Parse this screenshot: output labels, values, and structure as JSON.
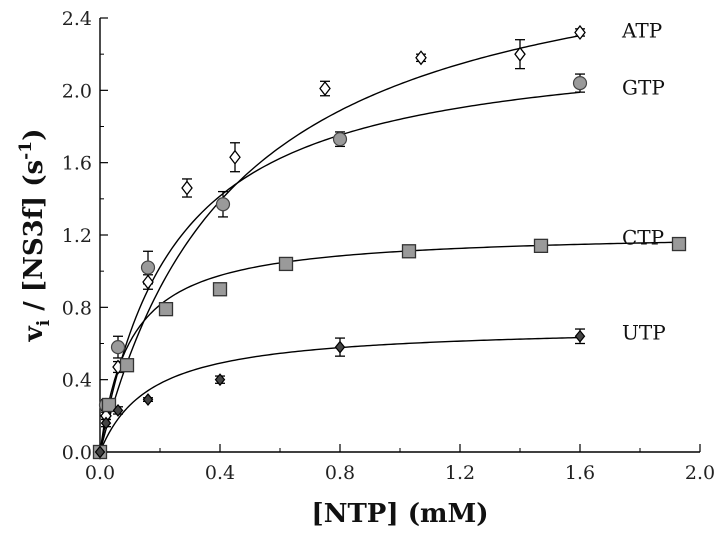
{
  "chart_data": {
    "type": "scatter",
    "xlabel": "[NTP] (mM)",
    "ylabel_main": "v",
    "ylabel_sub": "i",
    "ylabel_rest": " / [NS3f] (s",
    "ylabel_sup": "-1",
    "ylabel_end": ")",
    "xlim": [
      0.0,
      2.0
    ],
    "ylim": [
      0.0,
      2.4
    ],
    "xticks": [
      0.0,
      0.4,
      0.8,
      1.2,
      1.6,
      2.0
    ],
    "xtick_labels": [
      "0.0",
      "0.4",
      "0.8",
      "1.2",
      "1.6",
      "2.0"
    ],
    "yticks": [
      0.0,
      0.4,
      0.8,
      1.2,
      1.6,
      2.0,
      2.4
    ],
    "ytick_labels": [
      "0.0",
      "0.4",
      "0.8",
      "1.2",
      "1.6",
      "2.0",
      "2.4"
    ],
    "series": [
      {
        "name": "ATP",
        "marker": "diamond-open",
        "fill": "#ffffff",
        "points": [
          {
            "x": 0.0,
            "y": 0.0,
            "err": 0.0
          },
          {
            "x": 0.02,
            "y": 0.2,
            "err": 0.02
          },
          {
            "x": 0.06,
            "y": 0.47,
            "err": 0.03
          },
          {
            "x": 0.16,
            "y": 0.94,
            "err": 0.04
          },
          {
            "x": 0.29,
            "y": 1.46,
            "err": 0.05
          },
          {
            "x": 0.45,
            "y": 1.63,
            "err": 0.08
          },
          {
            "x": 0.75,
            "y": 2.01,
            "err": 0.04
          },
          {
            "x": 1.07,
            "y": 2.18,
            "err": 0.02
          },
          {
            "x": 1.4,
            "y": 2.2,
            "err": 0.08
          },
          {
            "x": 1.6,
            "y": 2.32,
            "err": 0.02
          }
        ],
        "fit": {
          "vmax": 2.95,
          "km": 0.45
        }
      },
      {
        "name": "GTP",
        "marker": "circle",
        "fill": "#9a9a9a",
        "points": [
          {
            "x": 0.0,
            "y": 0.0,
            "err": 0.0
          },
          {
            "x": 0.02,
            "y": 0.26,
            "err": 0.03
          },
          {
            "x": 0.06,
            "y": 0.58,
            "err": 0.06
          },
          {
            "x": 0.16,
            "y": 1.02,
            "err": 0.09
          },
          {
            "x": 0.41,
            "y": 1.37,
            "err": 0.07
          },
          {
            "x": 0.8,
            "y": 1.73,
            "err": 0.04
          },
          {
            "x": 1.6,
            "y": 2.04,
            "err": 0.05
          }
        ],
        "fit": {
          "vmax": 2.3,
          "km": 0.25
        }
      },
      {
        "name": "CTP",
        "marker": "square",
        "fill": "#9a9a9a",
        "points": [
          {
            "x": 0.0,
            "y": 0.0,
            "err": 0.0
          },
          {
            "x": 0.03,
            "y": 0.26,
            "err": 0.02
          },
          {
            "x": 0.09,
            "y": 0.48,
            "err": 0.03
          },
          {
            "x": 0.22,
            "y": 0.79,
            "err": 0.02
          },
          {
            "x": 0.4,
            "y": 0.9,
            "err": 0.02
          },
          {
            "x": 0.62,
            "y": 1.04,
            "err": 0.02
          },
          {
            "x": 1.03,
            "y": 1.11,
            "err": 0.02
          },
          {
            "x": 1.47,
            "y": 1.14,
            "err": 0.02
          },
          {
            "x": 1.93,
            "y": 1.15,
            "err": 0.02
          }
        ],
        "fit": {
          "vmax": 1.22,
          "km": 0.1
        }
      },
      {
        "name": "UTP",
        "marker": "diamond-mixed",
        "fill": "#444444",
        "points": [
          {
            "x": 0.0,
            "y": 0.0,
            "err": 0.0
          },
          {
            "x": 0.02,
            "y": 0.16,
            "err": 0.02
          },
          {
            "x": 0.06,
            "y": 0.23,
            "err": 0.02
          },
          {
            "x": 0.16,
            "y": 0.29,
            "err": 0.01
          },
          {
            "x": 0.4,
            "y": 0.4,
            "err": 0.02
          },
          {
            "x": 0.8,
            "y": 0.58,
            "err": 0.05
          },
          {
            "x": 1.6,
            "y": 0.64,
            "err": 0.04
          }
        ],
        "fit": {
          "vmax": 0.7,
          "km": 0.17
        }
      }
    ]
  }
}
